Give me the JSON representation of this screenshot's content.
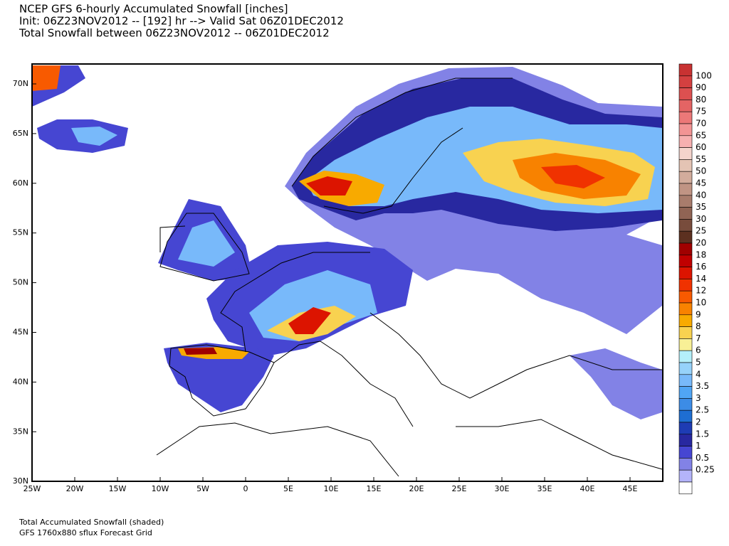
{
  "header": {
    "title": [
      "NCEP GFS 6-hourly Accumulated Snowfall [inches]",
      "Init: 06Z23NOV2012 -- [192] hr --> Valid Sat 06Z01DEC2012",
      "Total Snowfall between 06Z23NOV2012 -- 06Z01DEC2012"
    ]
  },
  "map": {
    "lat_ticks": [
      "70N",
      "65N",
      "60N",
      "55N",
      "50N",
      "45N",
      "40N",
      "35N",
      "30N"
    ],
    "lon_ticks": [
      "25W",
      "20W",
      "15W",
      "10W",
      "5W",
      "0",
      "5E",
      "10E",
      "15E",
      "20E",
      "25E",
      "30E",
      "35E",
      "40E",
      "45E"
    ]
  },
  "legend": {
    "labels": [
      "100",
      "90",
      "80",
      "75",
      "70",
      "65",
      "60",
      "55",
      "50",
      "45",
      "40",
      "35",
      "30",
      "25",
      "20",
      "18",
      "16",
      "14",
      "12",
      "10",
      "9",
      "8",
      "7",
      "6",
      "5",
      "4",
      "3.5",
      "3",
      "2.5",
      "2",
      "1.5",
      "1",
      "0.5",
      "0.25"
    ],
    "colors": [
      "#c83232",
      "#d44040",
      "#dc5050",
      "#e46464",
      "#ec7878",
      "#f29494",
      "#f6b0b0",
      "#f4d4cc",
      "#e4c4b4",
      "#d2ac9c",
      "#c09484",
      "#a87c6c",
      "#906454",
      "#784c3c",
      "#5c3020",
      "#a00000",
      "#c00000",
      "#dc1400",
      "#f03200",
      "#f85a00",
      "#f88200",
      "#f8aa00",
      "#f8d250",
      "#f8f096",
      "#b4f0fa",
      "#96d2fa",
      "#78b9fa",
      "#50a5f5",
      "#3c8ce6",
      "#1e6ed2",
      "#1e3cb4",
      "#2828a0",
      "#4646d2",
      "#8282e6",
      "#b4b4fa",
      "#ffffff"
    ]
  },
  "footer": [
    "Total Accumulated Snowfall (shaded)",
    "GFS 1760x880 sflux Forecast Grid"
  ]
}
